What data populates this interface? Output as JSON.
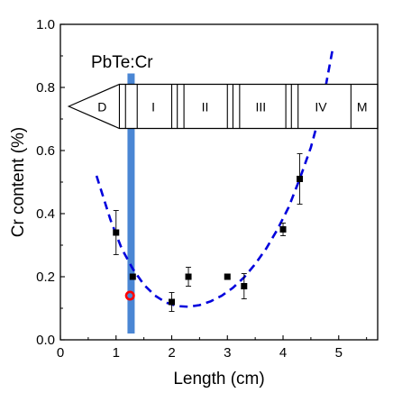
{
  "chart_data": {
    "type": "scatter",
    "title": "",
    "annotation": "PbTe:Cr",
    "xlabel": "Length (cm)",
    "ylabel": "Cr content  (%)",
    "xlim": [
      0,
      5.7
    ],
    "ylim": [
      0,
      1.0
    ],
    "xticks": [
      "0",
      "1",
      "2",
      "3",
      "4",
      "5"
    ],
    "xtick_values": [
      0,
      1,
      2,
      3,
      4,
      5
    ],
    "yticks": [
      "0.0",
      "0.2",
      "0.4",
      "0.6",
      "0.8",
      "1.0"
    ],
    "ytick_values": [
      0.0,
      0.2,
      0.4,
      0.6,
      0.8,
      1.0
    ],
    "grid": false,
    "series": [
      {
        "color": "#000000",
        "marker": "square",
        "points": [
          {
            "x": 1.0,
            "y": 0.34,
            "err": 0.07
          },
          {
            "x": 1.3,
            "y": 0.2,
            "err": 0.0
          },
          {
            "x": 2.0,
            "y": 0.12,
            "err": 0.03
          },
          {
            "x": 2.3,
            "y": 0.2,
            "err": 0.03
          },
          {
            "x": 3.0,
            "y": 0.2,
            "err": 0.0
          },
          {
            "x": 3.3,
            "y": 0.17,
            "err": 0.04
          },
          {
            "x": 4.0,
            "y": 0.35,
            "err": 0.02
          },
          {
            "x": 4.3,
            "y": 0.51,
            "err": 0.08
          }
        ]
      },
      {
        "color": "#ff0000",
        "marker": "circle-open",
        "points": [
          {
            "x": 1.25,
            "y": 0.14
          }
        ]
      }
    ],
    "fit_curve": {
      "color": "#0000dd",
      "style": "dashed",
      "x": [
        0.65,
        0.9,
        1.1,
        1.3,
        1.5,
        1.7,
        1.9,
        2.1,
        2.3,
        2.5,
        2.7,
        2.9,
        3.1,
        3.3,
        3.5,
        3.7,
        3.9,
        4.1,
        4.3,
        4.5,
        4.7,
        4.9
      ],
      "y": [
        0.52,
        0.38,
        0.29,
        0.225,
        0.175,
        0.14,
        0.118,
        0.107,
        0.105,
        0.11,
        0.122,
        0.14,
        0.165,
        0.198,
        0.24,
        0.29,
        0.35,
        0.42,
        0.51,
        0.61,
        0.74,
        0.93
      ]
    },
    "vertical_band": {
      "x": 1.27,
      "color": "#4a86d4"
    },
    "ingot_diagram": {
      "y_top": 0.81,
      "y_bottom": 0.67,
      "tip_x": 0.15,
      "body_start_x": 1.06,
      "end_x": 5.7,
      "dividers": [
        1.06,
        1.17,
        1.38,
        2.0,
        2.1,
        2.22,
        3.0,
        3.1,
        3.22,
        4.05,
        4.15,
        4.27,
        5.22
      ],
      "sections": [
        {
          "label": "D",
          "x": 0.75
        },
        {
          "label": "I",
          "x": 1.67
        },
        {
          "label": "II",
          "x": 2.6
        },
        {
          "label": "III",
          "x": 3.6
        },
        {
          "label": "IV",
          "x": 4.68
        },
        {
          "label": "M",
          "x": 5.42
        }
      ]
    }
  }
}
